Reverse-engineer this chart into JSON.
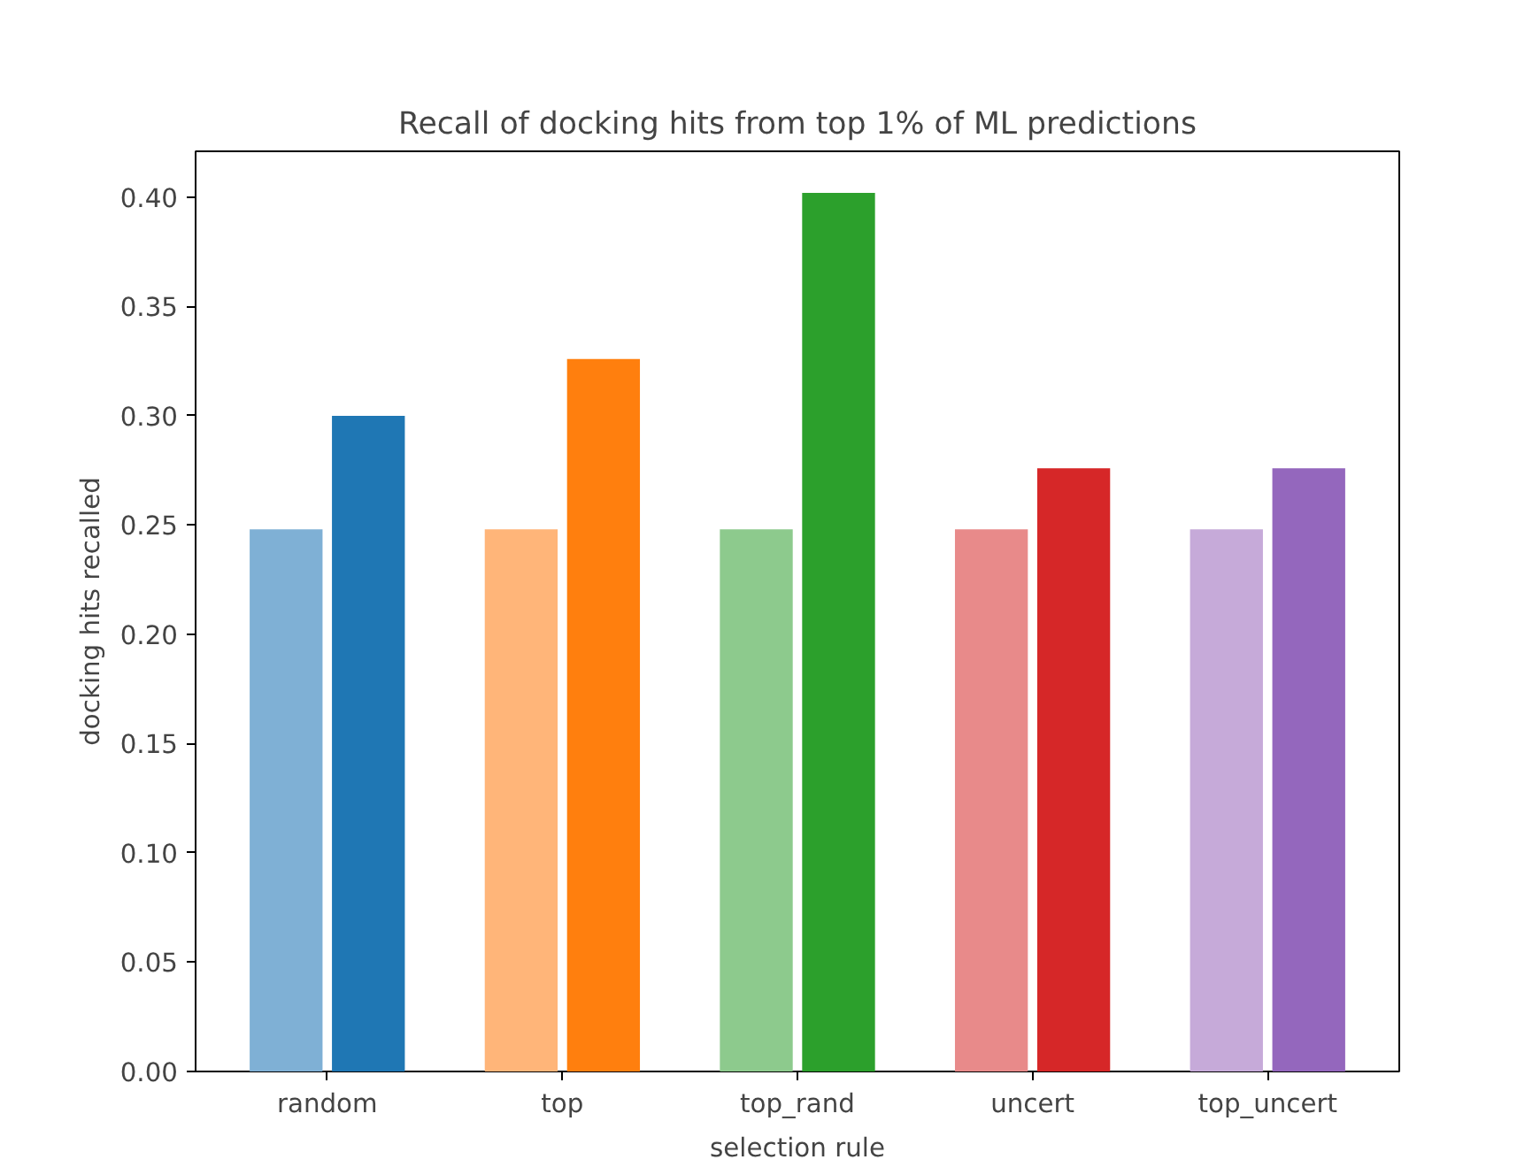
{
  "chart_data": {
    "type": "bar",
    "title": "Recall of docking hits from top 1% of ML predictions",
    "xlabel": "selection rule",
    "ylabel": "docking hits recalled",
    "categories": [
      "random",
      "top",
      "top_rand",
      "uncert",
      "top_uncert"
    ],
    "series": [
      {
        "colors": [
          "#7fb0d5",
          "#ffb579",
          "#8dca8d",
          "#e88a8a",
          "#c6aad9"
        ],
        "values": [
          0.248,
          0.248,
          0.248,
          0.248,
          0.248
        ]
      },
      {
        "colors": [
          "#1f77b4",
          "#ff7f0e",
          "#2ca02c",
          "#d62728",
          "#9467bd"
        ],
        "values": [
          0.3,
          0.326,
          0.402,
          0.276,
          0.276
        ]
      }
    ],
    "ylim": [
      0,
      0.421
    ],
    "yticks": [
      {
        "value": 0,
        "label": "0.00"
      },
      {
        "value": 0.05,
        "label": "0.05"
      },
      {
        "value": 0.1,
        "label": "0.10"
      },
      {
        "value": 0.15,
        "label": "0.15"
      },
      {
        "value": 0.2,
        "label": "0.20"
      },
      {
        "value": 0.25,
        "label": "0.25"
      },
      {
        "value": 0.3,
        "label": "0.30"
      },
      {
        "value": 0.35,
        "label": "0.35"
      },
      {
        "value": 0.4,
        "label": "0.40"
      }
    ],
    "grid": false
  }
}
